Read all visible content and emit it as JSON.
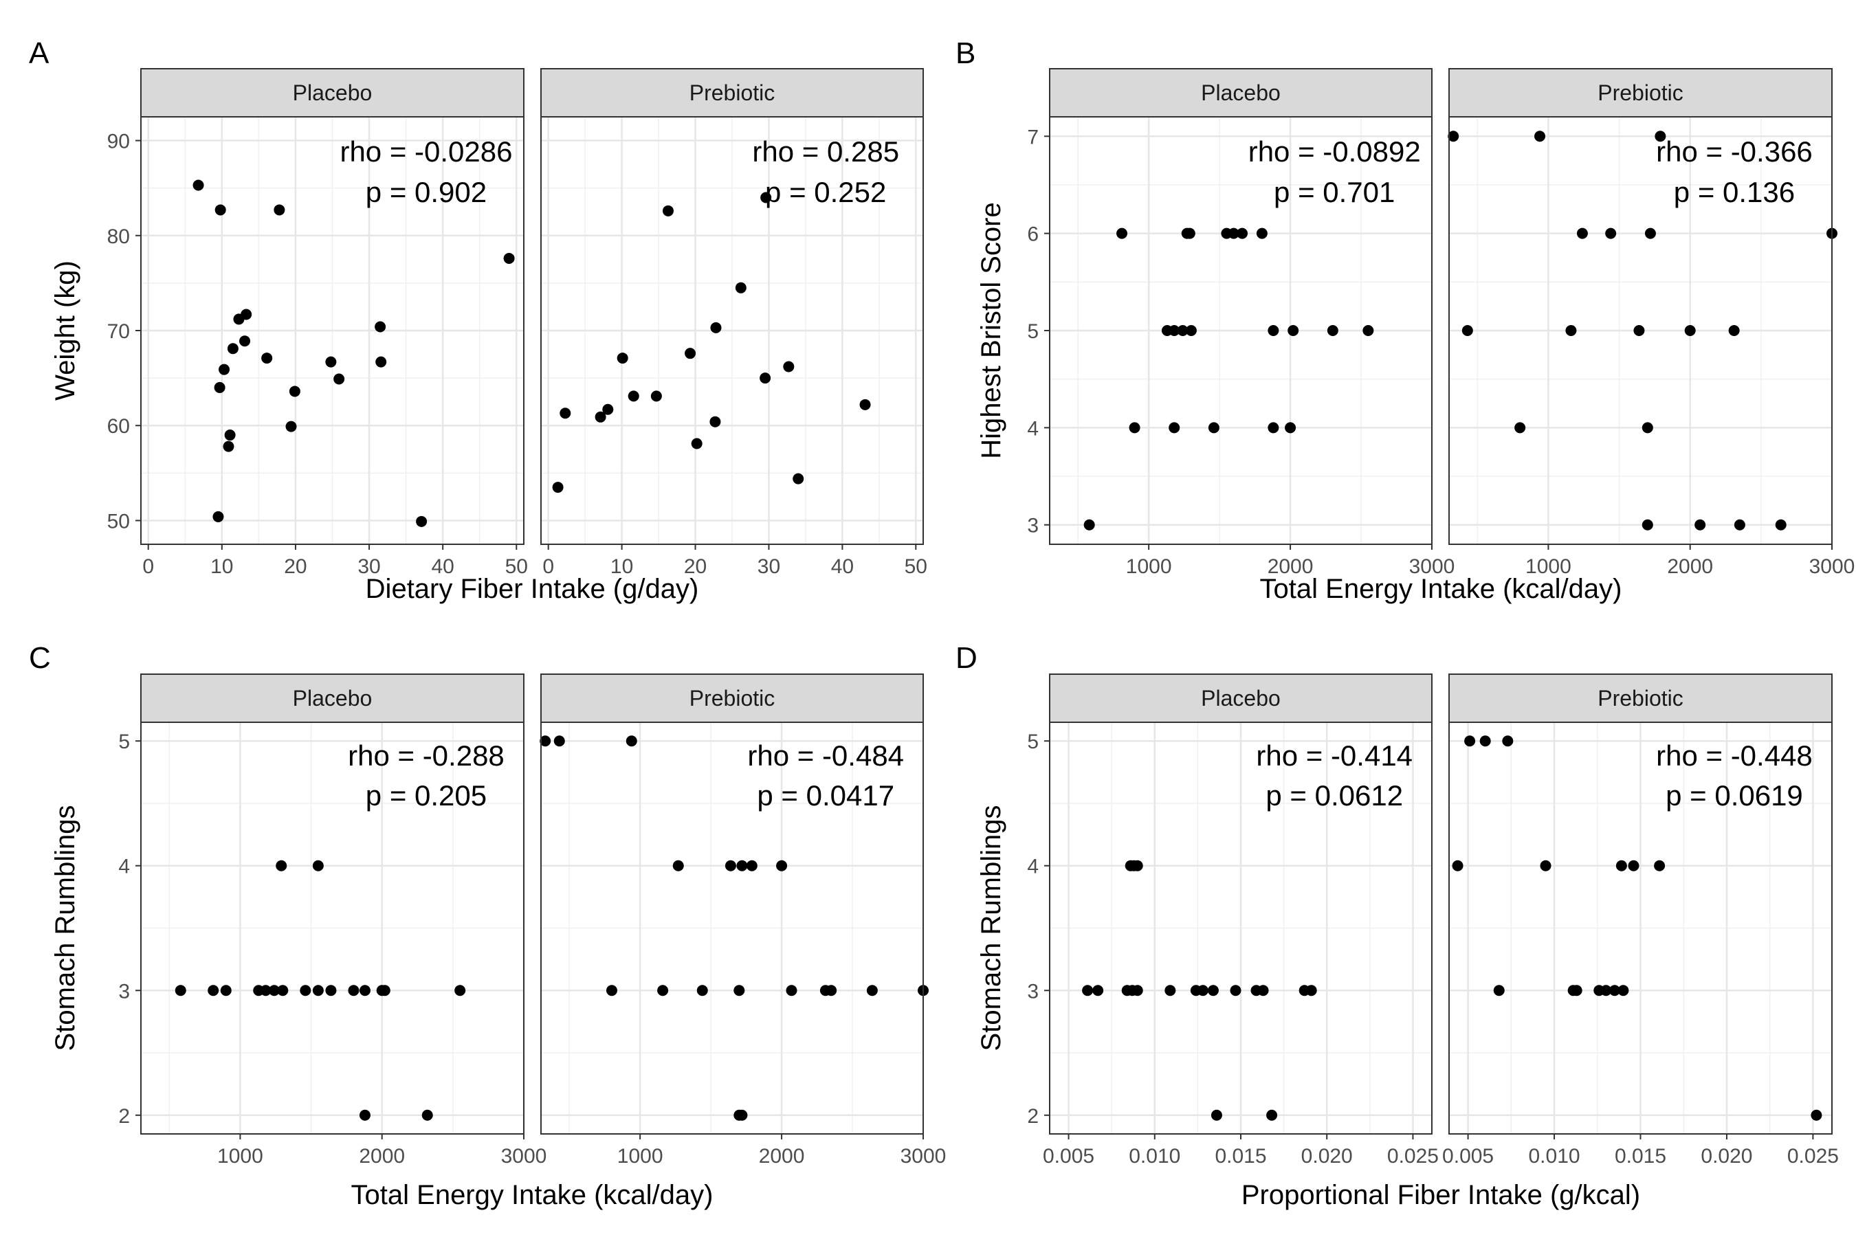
{
  "chart_data": [
    {
      "panel_label": "A",
      "type": "scatter",
      "xlabel": "Dietary Fiber Intake (g/day)",
      "ylabel": "Weight (kg)",
      "xlim": [
        -1,
        51
      ],
      "ylim": [
        47.5,
        92.5
      ],
      "xticks": [
        0,
        10,
        20,
        30,
        40,
        50
      ],
      "yticks": [
        50,
        60,
        70,
        80,
        90
      ],
      "grid": true,
      "facets": [
        {
          "name": "Placebo",
          "rho": "rho = -0.0286",
          "p": "p = 0.902",
          "points": [
            [
              6.8,
              85.3
            ],
            [
              9.8,
              82.7
            ],
            [
              17.8,
              82.7
            ],
            [
              9.5,
              50.4
            ],
            [
              9.7,
              64.0
            ],
            [
              10.3,
              65.9
            ],
            [
              10.9,
              57.8
            ],
            [
              11.1,
              59.0
            ],
            [
              11.5,
              68.1
            ],
            [
              12.3,
              71.2
            ],
            [
              13.3,
              71.7
            ],
            [
              13.1,
              68.9
            ],
            [
              16.1,
              67.1
            ],
            [
              19.4,
              59.9
            ],
            [
              19.9,
              63.6
            ],
            [
              24.8,
              66.7
            ],
            [
              25.9,
              64.9
            ],
            [
              31.5,
              70.4
            ],
            [
              31.6,
              66.7
            ],
            [
              37.1,
              49.9
            ],
            [
              49.0,
              77.6
            ]
          ]
        },
        {
          "name": "Prebiotic",
          "rho": "rho = 0.285",
          "p": "p = 0.252",
          "points": [
            [
              1.3,
              53.5
            ],
            [
              2.3,
              61.3
            ],
            [
              7.1,
              60.9
            ],
            [
              8.1,
              61.7
            ],
            [
              10.1,
              67.1
            ],
            [
              11.6,
              63.1
            ],
            [
              14.7,
              63.1
            ],
            [
              16.3,
              82.6
            ],
            [
              19.3,
              67.6
            ],
            [
              20.2,
              58.1
            ],
            [
              22.7,
              60.4
            ],
            [
              22.8,
              70.3
            ],
            [
              26.2,
              74.5
            ],
            [
              29.5,
              65.0
            ],
            [
              29.6,
              84.0
            ],
            [
              32.7,
              66.2
            ],
            [
              34.0,
              54.4
            ],
            [
              43.1,
              62.2
            ]
          ]
        }
      ]
    },
    {
      "panel_label": "B",
      "type": "scatter",
      "xlabel": "Total Energy Intake (kcal/day)",
      "ylabel": "Highest Bristol Score",
      "xlim": [
        300,
        3000
      ],
      "ylim": [
        2.8,
        7.2
      ],
      "xticks": [
        1000,
        2000,
        3000
      ],
      "yticks": [
        3,
        4,
        5,
        6,
        7
      ],
      "grid": true,
      "facets": [
        {
          "name": "Placebo",
          "rho": "rho = -0.0892",
          "p": "p = 0.701",
          "points": [
            [
              580,
              3
            ],
            [
              810,
              6
            ],
            [
              1270,
              6
            ],
            [
              1290,
              6
            ],
            [
              1550,
              6
            ],
            [
              1600,
              6
            ],
            [
              1660,
              6
            ],
            [
              1800,
              6
            ],
            [
              1130,
              5
            ],
            [
              1180,
              5
            ],
            [
              1240,
              5
            ],
            [
              1300,
              5
            ],
            [
              1880,
              5
            ],
            [
              2020,
              5
            ],
            [
              2300,
              5
            ],
            [
              2550,
              5
            ],
            [
              900,
              4
            ],
            [
              1180,
              4
            ],
            [
              1460,
              4
            ],
            [
              1880,
              4
            ],
            [
              2000,
              4
            ]
          ]
        },
        {
          "name": "Prebiotic",
          "rho": "rho = -0.366",
          "p": "p = 0.136",
          "points": [
            [
              330,
              7
            ],
            [
              940,
              7
            ],
            [
              1790,
              7
            ],
            [
              1240,
              6
            ],
            [
              1440,
              6
            ],
            [
              1720,
              6
            ],
            [
              3000,
              6
            ],
            [
              430,
              5
            ],
            [
              1160,
              5
            ],
            [
              1640,
              5
            ],
            [
              2000,
              5
            ],
            [
              2310,
              5
            ],
            [
              800,
              4
            ],
            [
              1700,
              4
            ],
            [
              1700,
              3
            ],
            [
              2070,
              3
            ],
            [
              2350,
              3
            ],
            [
              2640,
              3
            ]
          ]
        }
      ]
    },
    {
      "panel_label": "C",
      "type": "scatter",
      "xlabel": "Total Energy Intake (kcal/day)",
      "ylabel": "Stomach Rumblings",
      "xlim": [
        300,
        3000
      ],
      "ylim": [
        1.85,
        5.15
      ],
      "xticks": [
        1000,
        2000,
        3000
      ],
      "yticks": [
        2,
        3,
        4,
        5
      ],
      "grid": true,
      "facets": [
        {
          "name": "Placebo",
          "rho": "rho = -0.288",
          "p": "p = 0.205",
          "points": [
            [
              580,
              3
            ],
            [
              810,
              3
            ],
            [
              900,
              3
            ],
            [
              1130,
              3
            ],
            [
              1180,
              3
            ],
            [
              1240,
              3
            ],
            [
              1300,
              3
            ],
            [
              1460,
              3
            ],
            [
              1550,
              3
            ],
            [
              1640,
              3
            ],
            [
              1800,
              3
            ],
            [
              1880,
              3
            ],
            [
              2000,
              3
            ],
            [
              2020,
              3
            ],
            [
              2550,
              3
            ],
            [
              1290,
              4
            ],
            [
              1550,
              4
            ],
            [
              1880,
              2
            ],
            [
              2320,
              2
            ]
          ]
        },
        {
          "name": "Prebiotic",
          "rho": "rho = -0.484",
          "p": "p = 0.0417",
          "points": [
            [
              330,
              5
            ],
            [
              430,
              5
            ],
            [
              940,
              5
            ],
            [
              1270,
              4
            ],
            [
              1640,
              4
            ],
            [
              1720,
              4
            ],
            [
              1790,
              4
            ],
            [
              2000,
              4
            ],
            [
              800,
              3
            ],
            [
              1160,
              3
            ],
            [
              1440,
              3
            ],
            [
              1700,
              3
            ],
            [
              2070,
              3
            ],
            [
              2310,
              3
            ],
            [
              2350,
              3
            ],
            [
              2640,
              3
            ],
            [
              3000,
              3
            ],
            [
              1700,
              2
            ],
            [
              1720,
              2
            ]
          ]
        }
      ]
    },
    {
      "panel_label": "D",
      "type": "scatter",
      "xlabel": "Proportional Fiber Intake (g/kcal)",
      "ylabel": "Stomach Rumblings",
      "xlim": [
        0.0039,
        0.0261
      ],
      "ylim": [
        1.85,
        5.15
      ],
      "xticks": [
        0.005,
        0.01,
        0.015,
        0.02,
        0.025
      ],
      "xtick_labels": [
        "0.005",
        "0.010",
        "0.015",
        "0.020",
        "0.025"
      ],
      "yticks": [
        2,
        3,
        4,
        5
      ],
      "grid": true,
      "facets": [
        {
          "name": "Placebo",
          "rho": "rho = -0.414",
          "p": "p = 0.0612",
          "points": [
            [
              0.0061,
              3
            ],
            [
              0.0067,
              3
            ],
            [
              0.0084,
              3
            ],
            [
              0.0087,
              3
            ],
            [
              0.009,
              3
            ],
            [
              0.0109,
              3
            ],
            [
              0.0124,
              3
            ],
            [
              0.0128,
              3
            ],
            [
              0.0134,
              3
            ],
            [
              0.0147,
              3
            ],
            [
              0.0159,
              3
            ],
            [
              0.0163,
              3
            ],
            [
              0.0187,
              3
            ],
            [
              0.0191,
              3
            ],
            [
              0.0086,
              4
            ],
            [
              0.0088,
              4
            ],
            [
              0.009,
              4
            ],
            [
              0.0136,
              2
            ],
            [
              0.0168,
              2
            ]
          ]
        },
        {
          "name": "Prebiotic",
          "rho": "rho = -0.448",
          "p": "p = 0.0619",
          "points": [
            [
              0.0051,
              5
            ],
            [
              0.006,
              5
            ],
            [
              0.0073,
              5
            ],
            [
              0.0044,
              4
            ],
            [
              0.0095,
              4
            ],
            [
              0.0139,
              4
            ],
            [
              0.0146,
              4
            ],
            [
              0.0161,
              4
            ],
            [
              0.0068,
              3
            ],
            [
              0.0111,
              3
            ],
            [
              0.0113,
              3
            ],
            [
              0.0126,
              3
            ],
            [
              0.013,
              3
            ],
            [
              0.0135,
              3
            ],
            [
              0.014,
              3
            ],
            [
              0.0252,
              2
            ]
          ]
        }
      ]
    }
  ]
}
